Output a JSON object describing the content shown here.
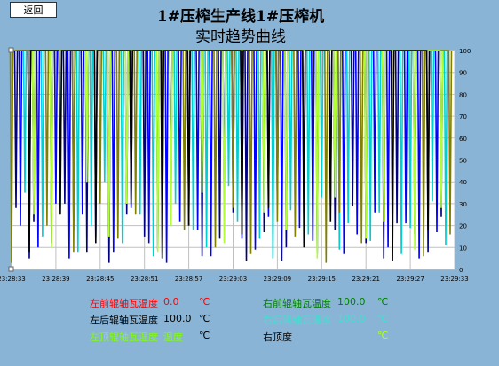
{
  "toolbar": {
    "back_label": "返回"
  },
  "header": {
    "title_line1": "1#压榨生产线1#压榨机",
    "title_line2": "实时趋势曲线"
  },
  "chart_data": {
    "type": "line",
    "xlabel": "",
    "ylabel": "",
    "ylim": [
      0,
      100
    ],
    "y_ticks": [
      "0",
      "10",
      "20",
      "30",
      "40",
      "50",
      "60",
      "70",
      "80",
      "90",
      "100"
    ],
    "x_ticks": [
      "23:28:33",
      "23:28:39",
      "23:28:45",
      "23:28:51",
      "23:28:57",
      "23:29:03",
      "23:29:09",
      "23:29:15",
      "23:29:21",
      "23:29:27",
      "23:29:33"
    ],
    "grid": true,
    "series": [
      {
        "color": "#000080",
        "x": [
          1,
          4,
          5,
          9,
          12,
          14,
          17,
          22,
          26,
          30,
          33,
          36,
          40,
          43,
          47,
          50,
          53,
          57,
          60,
          62,
          66,
          69,
          73,
          77,
          80,
          84,
          87,
          91,
          94,
          97
        ],
        "values": [
          28,
          5,
          22,
          12,
          30,
          18,
          8,
          3,
          25,
          15,
          9,
          33,
          20,
          6,
          14,
          26,
          4,
          17,
          30,
          10,
          23,
          7,
          18,
          29,
          12,
          5,
          21,
          16,
          8,
          24
        ]
      },
      {
        "color": "#0000ff",
        "x": [
          2,
          6,
          10,
          13,
          16,
          19,
          23,
          27,
          31,
          35,
          38,
          42,
          45,
          48,
          52,
          55,
          58,
          61,
          65,
          68,
          72,
          75,
          78,
          82,
          85,
          89,
          92,
          96
        ],
        "values": [
          20,
          10,
          30,
          5,
          25,
          15,
          8,
          28,
          12,
          3,
          22,
          18,
          6,
          27,
          14,
          9,
          24,
          4,
          19,
          13,
          29,
          7,
          16,
          26,
          10,
          21,
          5,
          17
        ]
      },
      {
        "color": "#00ced1",
        "x": [
          3,
          7,
          11,
          15,
          18,
          21,
          25,
          29,
          32,
          37,
          41,
          44,
          49,
          51,
          56,
          59,
          63,
          67,
          70,
          74,
          76,
          81,
          83,
          88,
          90,
          95,
          98
        ],
        "values": [
          35,
          15,
          28,
          8,
          20,
          40,
          12,
          25,
          6,
          30,
          18,
          10,
          38,
          22,
          14,
          5,
          27,
          16,
          33,
          9,
          21,
          13,
          26,
          7,
          19,
          31,
          11
        ]
      },
      {
        "color": "#808000",
        "x": [
          0,
          8,
          14,
          20,
          24,
          28,
          34,
          39,
          46,
          50,
          54,
          60,
          64,
          71,
          74,
          79,
          86,
          93,
          99
        ],
        "values": [
          3,
          20,
          8,
          30,
          14,
          25,
          5,
          18,
          10,
          28,
          7,
          22,
          15,
          3,
          26,
          12,
          19,
          6,
          16
        ]
      },
      {
        "color": "#adff2f",
        "x": [
          5,
          9,
          17,
          22,
          26,
          33,
          36,
          43,
          48,
          57,
          62,
          69,
          73,
          80,
          84,
          91,
          97
        ],
        "values": [
          25,
          10,
          40,
          15,
          30,
          8,
          20,
          35,
          12,
          26,
          18,
          5,
          33,
          14,
          22,
          9,
          28
        ]
      },
      {
        "color": "#000000",
        "x": [
          4,
          11,
          19,
          27,
          34,
          40,
          52,
          58,
          66,
          72,
          86,
          94
        ],
        "values": [
          8,
          25,
          12,
          30,
          5,
          20,
          16,
          28,
          10,
          22,
          4,
          18
        ]
      }
    ]
  },
  "legend": {
    "left": [
      {
        "label": "左前辊轴瓦温度",
        "value": "0.0",
        "unit": "℃",
        "label_color": "#ff0000",
        "value_color": "#ff0000",
        "unit_color": "#ff0000"
      },
      {
        "label": "左后辊轴瓦温度",
        "value": "100.0",
        "unit": "℃",
        "label_color": "#000000",
        "value_color": "#000000",
        "unit_color": "#000000"
      },
      {
        "label": "左顶辊轴瓦温度",
        "value": "温度",
        "unit": "℃",
        "label_color": "#7fff00",
        "value_color": "#7fff00",
        "unit_color": "#000000"
      }
    ],
    "right": [
      {
        "label": "右前辊轴瓦温度",
        "value": "100.0",
        "unit": "℃",
        "label_color": "#008000",
        "value_color": "#008000",
        "unit_color": "#008000"
      },
      {
        "label": "右后辊轴瓦温度",
        "value": "100.0",
        "unit": "℃",
        "label_color": "#40e0d0",
        "value_color": "#40e0d0",
        "unit_color": "#40e0d0"
      },
      {
        "label": "右顶度",
        "value": "",
        "unit": "℃",
        "label_color": "#000000",
        "value_color": "#00bfff",
        "unit_color": "#adff2f"
      }
    ]
  },
  "colors": {
    "background": "#8ab4d6",
    "plot_bg": "#ffffff",
    "grid": "#c0c0c0"
  }
}
